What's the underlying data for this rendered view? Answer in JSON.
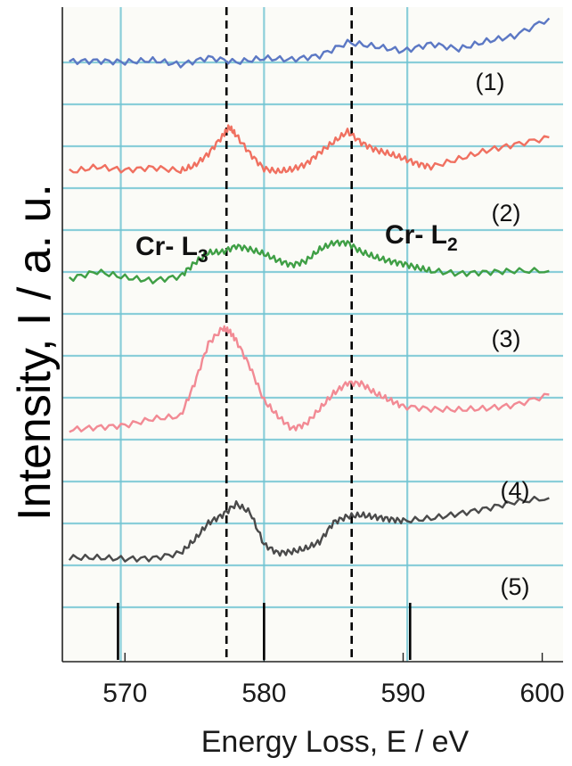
{
  "chart_data": {
    "type": "line",
    "xlabel": "Energy Loss, E / eV",
    "ylabel": "Intensity, I / a. u.",
    "xlim": [
      565.5,
      601.5
    ],
    "ylim": [
      0,
      100
    ],
    "x_ticks": [
      570,
      580,
      590,
      600
    ],
    "grid": true,
    "grid_color": "#6fc3d2",
    "peak_markers": [
      {
        "label_main": "Cr- L",
        "label_sub": "3",
        "x": 577.3
      },
      {
        "label_main": "Cr- L",
        "label_sub": "2",
        "x": 586.3
      }
    ],
    "series": [
      {
        "label": "(1)",
        "color": "#5c78c4",
        "x": [
          566,
          568,
          570,
          572,
          574,
          576,
          578,
          580,
          582,
          584,
          586,
          588,
          590,
          592,
          594,
          596,
          598,
          600.5
        ],
        "y": [
          91.7,
          91.8,
          91.6,
          91.9,
          91.2,
          92.3,
          91.6,
          92.2,
          92.0,
          92.6,
          94.6,
          94.0,
          93.3,
          94.4,
          93.6,
          94.8,
          95.6,
          98.3
        ]
      },
      {
        "label": "(2)",
        "color": "#f07060",
        "x": [
          566,
          568,
          570,
          572,
          574,
          575,
          576,
          577,
          577.5,
          578,
          579,
          580,
          581,
          582,
          583,
          584,
          585,
          586,
          587,
          588,
          589,
          590,
          591,
          592,
          594,
          596,
          598,
          600.5
        ],
        "y": [
          74.8,
          75.6,
          75.1,
          75.5,
          75.0,
          75.8,
          77.6,
          80.3,
          81.7,
          80.4,
          77.6,
          75.3,
          74.9,
          75.2,
          76.0,
          77.8,
          79.4,
          81.0,
          79.3,
          78.2,
          77.6,
          76.9,
          76.1,
          75.6,
          76.8,
          78.1,
          79.0,
          80.1
        ]
      },
      {
        "label": "(3)",
        "color": "#3f9f45",
        "x": [
          566,
          568,
          570,
          572,
          574,
          575,
          576,
          577,
          578,
          579,
          580,
          581,
          582,
          583,
          584,
          585,
          586,
          587,
          588,
          589,
          590,
          591,
          592,
          594,
          596,
          598,
          600.5
        ],
        "y": [
          58.5,
          59.6,
          58.7,
          58.2,
          58.9,
          60.9,
          62.5,
          62.6,
          63.5,
          63.0,
          62.3,
          61.3,
          60.6,
          61.2,
          63.0,
          64.0,
          64.0,
          62.6,
          61.8,
          61.2,
          60.8,
          60.2,
          59.7,
          59.3,
          59.5,
          59.7,
          59.7
        ]
      },
      {
        "label": "(4)",
        "color": "#f28a94",
        "x": [
          566,
          568,
          570,
          572,
          574,
          575,
          576,
          577,
          577.5,
          578,
          579,
          580,
          581,
          582,
          583,
          584,
          585,
          586,
          587,
          588,
          589,
          590,
          592,
          594,
          596,
          598,
          600.5
        ],
        "y": [
          35.4,
          35.8,
          36.1,
          37.1,
          37.5,
          42.5,
          48.6,
          50.9,
          50.5,
          49.1,
          45.0,
          39.9,
          37.5,
          35.6,
          36.3,
          38.6,
          41.0,
          42.6,
          42.5,
          41.0,
          40.0,
          39.0,
          38.6,
          38.5,
          38.7,
          39.2,
          40.8
        ]
      },
      {
        "label": "(5)",
        "color": "#4a4a4a",
        "x": [
          566,
          568,
          570,
          572,
          574,
          575,
          576,
          577,
          578,
          579,
          580,
          581,
          582,
          583,
          584,
          585,
          586,
          587,
          588,
          589,
          590,
          592,
          594,
          596,
          598,
          600.5
        ],
        "y": [
          15.9,
          15.9,
          15.7,
          15.8,
          16.6,
          18.6,
          21.2,
          22.4,
          24.1,
          22.8,
          17.9,
          16.6,
          16.8,
          17.3,
          18.3,
          21.3,
          22.2,
          22.4,
          22.1,
          21.8,
          21.5,
          21.9,
          22.6,
          23.4,
          24.4,
          25.0
        ]
      }
    ]
  }
}
